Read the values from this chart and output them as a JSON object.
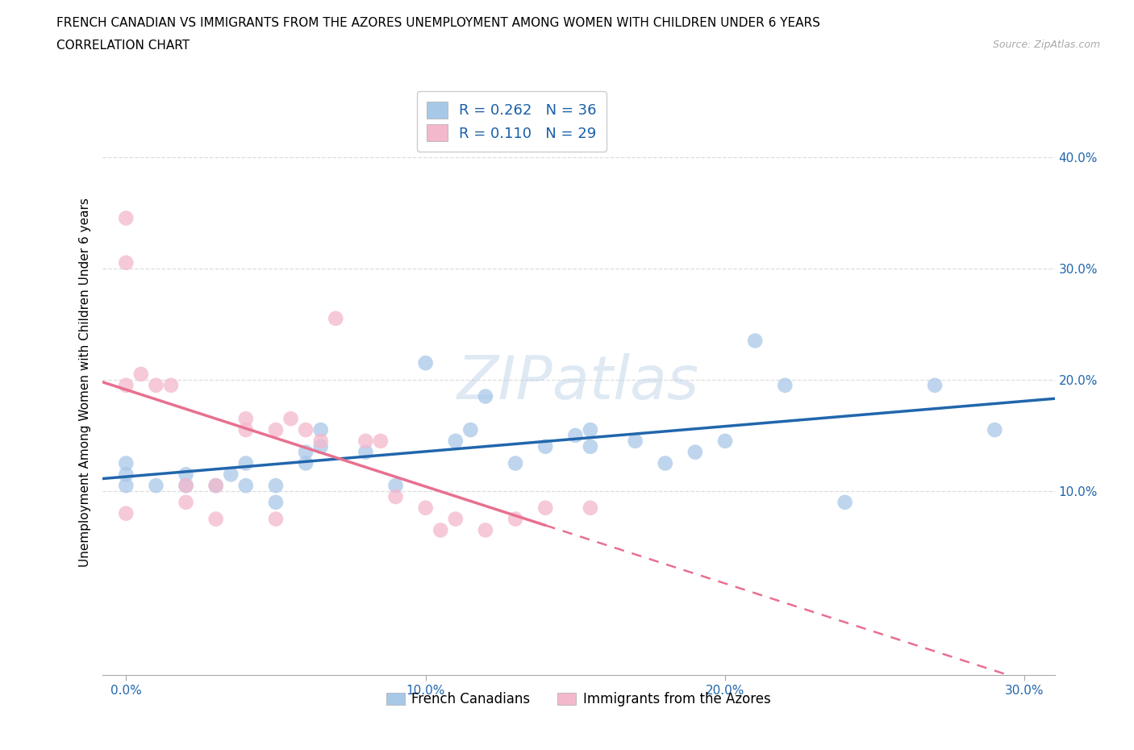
{
  "title_line1": "FRENCH CANADIAN VS IMMIGRANTS FROM THE AZORES UNEMPLOYMENT AMONG WOMEN WITH CHILDREN UNDER 6 YEARS",
  "title_line2": "CORRELATION CHART",
  "source_text": "Source: ZipAtlas.com",
  "ylabel": "Unemployment Among Women with Children Under 6 years",
  "watermark": "ZIPatlas",
  "xlim": [
    -0.008,
    0.31
  ],
  "ylim": [
    -0.065,
    0.46
  ],
  "yticks": [
    0.1,
    0.2,
    0.3,
    0.4
  ],
  "xticks": [
    0.0,
    0.1,
    0.2,
    0.3
  ],
  "legend_r1": "R = 0.262",
  "legend_n1": "N = 36",
  "legend_r2": "R = 0.110",
  "legend_n2": "N = 29",
  "blue_color": "#a8c8e8",
  "pink_color": "#f4b8cc",
  "blue_line_color": "#2166ac",
  "pink_line_color": "#e87090",
  "grid_color": "#dddddd",
  "fc_x": [
    0.0,
    0.0,
    0.0,
    0.01,
    0.02,
    0.02,
    0.03,
    0.035,
    0.04,
    0.04,
    0.05,
    0.05,
    0.06,
    0.06,
    0.065,
    0.065,
    0.08,
    0.09,
    0.1,
    0.11,
    0.115,
    0.12,
    0.13,
    0.14,
    0.15,
    0.155,
    0.155,
    0.17,
    0.18,
    0.19,
    0.2,
    0.21,
    0.22,
    0.24,
    0.27,
    0.29
  ],
  "fc_y": [
    0.105,
    0.115,
    0.125,
    0.105,
    0.105,
    0.115,
    0.105,
    0.115,
    0.105,
    0.125,
    0.09,
    0.105,
    0.125,
    0.135,
    0.14,
    0.155,
    0.135,
    0.105,
    0.215,
    0.145,
    0.155,
    0.185,
    0.125,
    0.14,
    0.15,
    0.14,
    0.155,
    0.145,
    0.125,
    0.135,
    0.145,
    0.235,
    0.195,
    0.09,
    0.195,
    0.155
  ],
  "az_x": [
    0.0,
    0.0,
    0.0,
    0.0,
    0.005,
    0.01,
    0.015,
    0.02,
    0.02,
    0.03,
    0.03,
    0.04,
    0.04,
    0.05,
    0.05,
    0.055,
    0.06,
    0.065,
    0.07,
    0.08,
    0.085,
    0.09,
    0.1,
    0.105,
    0.11,
    0.12,
    0.13,
    0.14,
    0.155
  ],
  "az_y": [
    0.345,
    0.305,
    0.195,
    0.08,
    0.205,
    0.195,
    0.195,
    0.105,
    0.09,
    0.105,
    0.075,
    0.165,
    0.155,
    0.155,
    0.075,
    0.165,
    0.155,
    0.145,
    0.255,
    0.145,
    0.145,
    0.095,
    0.085,
    0.065,
    0.075,
    0.065,
    0.075,
    0.085,
    0.085
  ]
}
